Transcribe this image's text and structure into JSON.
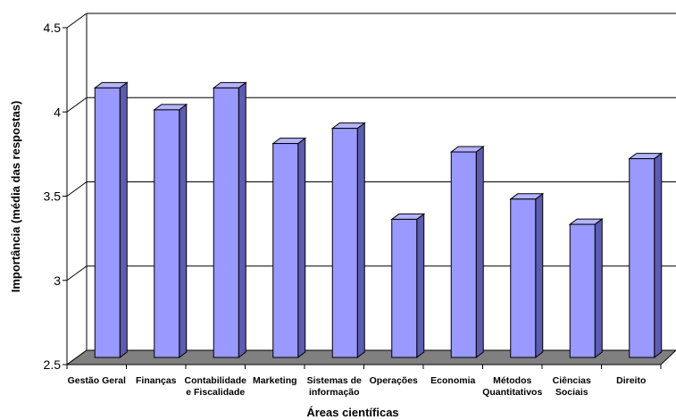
{
  "chart_data": {
    "type": "bar",
    "title": "",
    "xlabel": "Áreas científicas",
    "ylabel": "Importância (média das respostas)",
    "ylim": [
      2.5,
      4.5
    ],
    "yticks": [
      "2.5",
      "3",
      "3.5",
      "4",
      "4.5"
    ],
    "grid": true,
    "style": "3d",
    "categories": [
      [
        "Gestão  Geral"
      ],
      [
        "Finanças"
      ],
      [
        "Contabilidade",
        "e Fiscalidade"
      ],
      [
        "Marketing"
      ],
      [
        "Sistemas de",
        "informação"
      ],
      [
        "Operações"
      ],
      [
        "Economia"
      ],
      [
        "Métodos",
        "Quantitativos"
      ],
      [
        "Ciências",
        "Sociais"
      ],
      [
        "Direito"
      ]
    ],
    "values": [
      4.1,
      3.97,
      4.1,
      3.77,
      3.86,
      3.32,
      3.72,
      3.44,
      3.29,
      3.68
    ]
  },
  "colors": {
    "bar_front": "#9999ff",
    "bar_side": "#5c5cb0",
    "bar_top": "#b3b3ff",
    "floor": "#808080",
    "grid": "#000000"
  }
}
